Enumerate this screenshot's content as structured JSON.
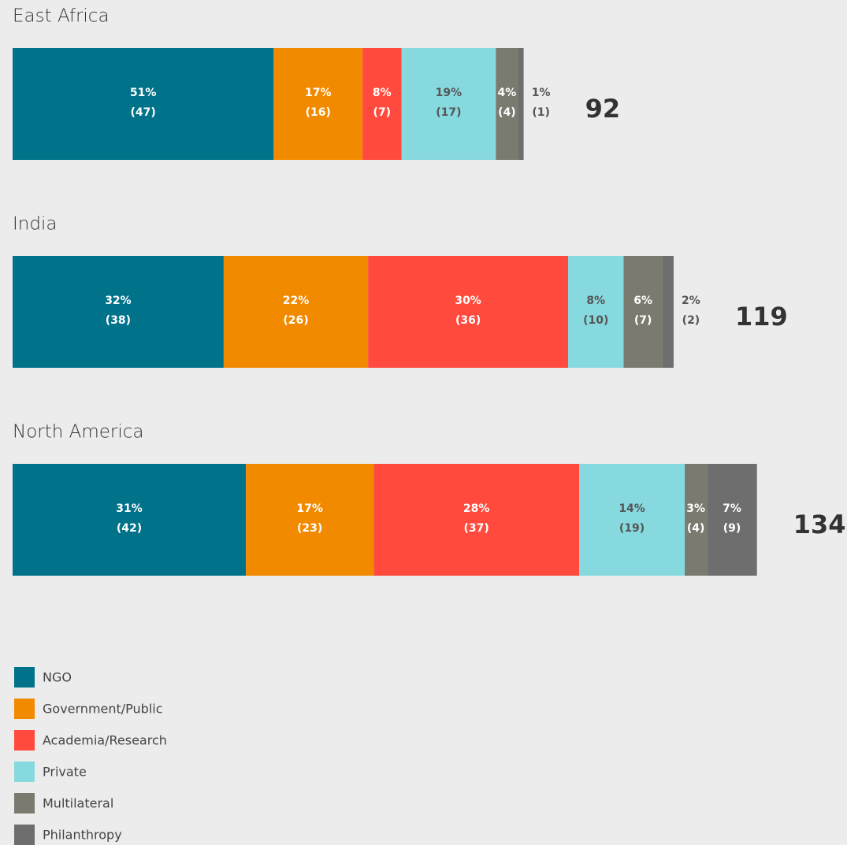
{
  "chart_data": {
    "type": "stacked_bar_horizontal",
    "categories": [
      "East Africa",
      "India",
      "North America"
    ],
    "series": [
      {
        "name": "NGO",
        "color": "#00728a",
        "values": [
          47,
          38,
          42
        ],
        "value_labels": [
          "(47)",
          "(38)",
          "(42)"
        ],
        "share_labels": [
          "51%",
          "32%",
          "31%"
        ]
      },
      {
        "name": "Government/Public",
        "color": "#f28a00",
        "values": [
          16,
          26,
          23
        ],
        "value_labels": [
          "(16)",
          "(26)",
          "(23)"
        ],
        "share_labels": [
          "17%",
          "22%",
          "17%"
        ]
      },
      {
        "name": "Academia/Research",
        "color": "#ff4a3d",
        "values": [
          7,
          36,
          37
        ],
        "value_labels": [
          "(7)",
          "(36)",
          "(37)"
        ],
        "share_labels": [
          "8%",
          "30%",
          "28%"
        ]
      },
      {
        "name": "Private",
        "color": "#86d9de",
        "values": [
          17,
          10,
          19
        ],
        "value_labels": [
          "(17)",
          "(10)",
          "(19)"
        ],
        "share_labels": [
          "19%",
          "8%",
          "14%"
        ]
      },
      {
        "name": "Multilateral",
        "color": "#7b7a6e",
        "values": [
          4,
          7,
          4
        ],
        "value_labels": [
          "(4)",
          "(7)",
          "(4)"
        ],
        "share_labels": [
          "4%",
          "6%",
          "3%"
        ]
      },
      {
        "name": "Philanthropy",
        "color": "#6e6e6e",
        "values": [
          1,
          2,
          9
        ],
        "value_labels": [
          "(1)",
          "(2)",
          "(9)"
        ],
        "share_labels": [
          "1%",
          "2%",
          "7%"
        ]
      }
    ],
    "totals": [
      92,
      119,
      134
    ]
  }
}
